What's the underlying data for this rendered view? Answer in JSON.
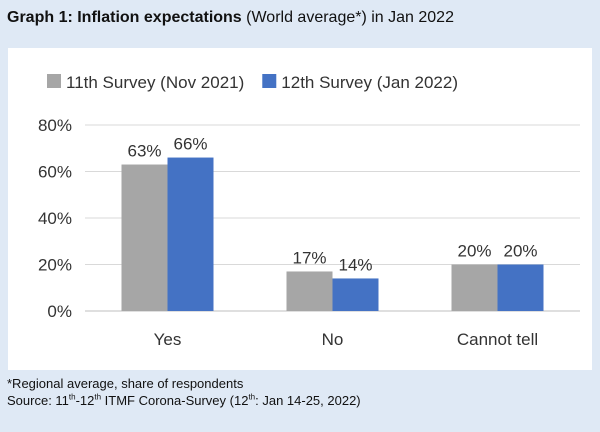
{
  "header": {
    "title_bold": "Graph 1: Inflation expectations",
    "title_rest": " (World average*) in Jan 2022"
  },
  "footer": {
    "note": "*Regional average, share of respondents",
    "source_a": "Source: 11",
    "source_sup1": "th",
    "source_b": "-12",
    "source_sup2": "th",
    "source_c": " ITMF Corona-Survey (12",
    "source_sup3": "th",
    "source_d": ": Jan 14-25, 2022)"
  },
  "colors": {
    "series1": "#a6a6a6",
    "series2": "#4472c4",
    "grid": "#d9d9d9",
    "background": "#dfe9f5"
  },
  "chart_data": {
    "type": "bar",
    "categories": [
      "Yes",
      "No",
      "Cannot tell"
    ],
    "series": [
      {
        "name": "11th Survey (Nov 2021)",
        "values": [
          63,
          17,
          20
        ],
        "labels": [
          "63%",
          "17%",
          "20%"
        ]
      },
      {
        "name": "12th Survey (Jan 2022)",
        "values": [
          66,
          14,
          20
        ],
        "labels": [
          "66%",
          "14%",
          "20%"
        ]
      }
    ],
    "y_ticks": [
      "0%",
      "20%",
      "40%",
      "60%",
      "80%"
    ],
    "ylim": [
      0,
      80
    ],
    "grid": true,
    "legend_position": "top"
  }
}
